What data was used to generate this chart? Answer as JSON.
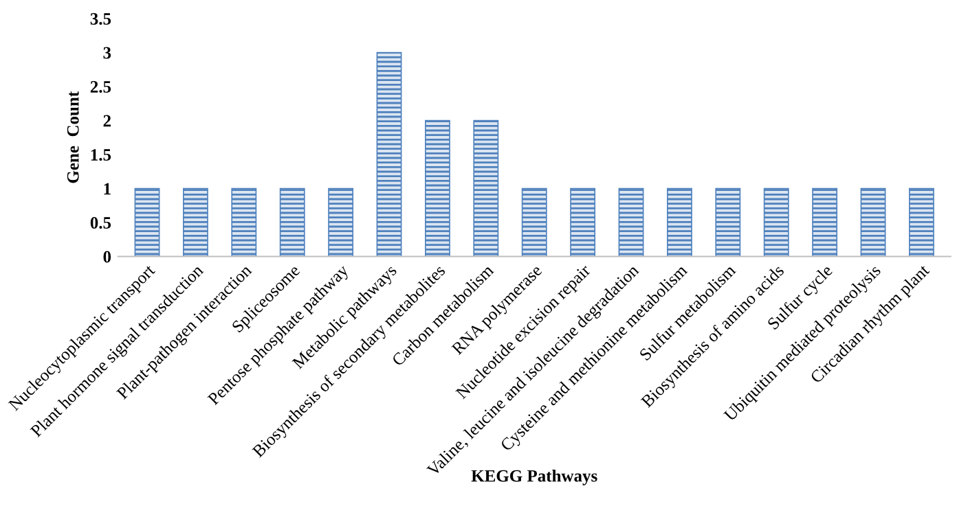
{
  "chart_data": {
    "type": "bar",
    "categories": [
      "Nucleocytoplasmic transport",
      "Plant hormone signal transduction",
      "Plant-pathogen interaction",
      "Spliceosome",
      "Pentose phosphate pathway",
      "Metabolic pathways",
      "Biosynthesis of secondary metabolites",
      "Carbon metabolism",
      "RNA polymerase",
      "Nucleotide excision repair",
      "Valine, leucine and isoleucine degradation",
      "Cysteine and methionine metabolism",
      "Sulfur metabolism",
      "Biosynthesis of amino acids",
      "Sulfur cycle",
      "Ubiquitin mediated proteolysis",
      "Circadian rhythm plant"
    ],
    "values": [
      1,
      1,
      1,
      1,
      1,
      3,
      2,
      2,
      1,
      1,
      1,
      1,
      1,
      1,
      1,
      1,
      1
    ],
    "color": "#4f81bd",
    "xlabel": "KEGG Pathways",
    "ylabel": "Gene  Count",
    "ylim": [
      0,
      3.5
    ],
    "yticks": [
      0,
      0.5,
      1,
      1.5,
      2,
      2.5,
      3,
      3.5
    ],
    "grid": false,
    "legend": false
  }
}
